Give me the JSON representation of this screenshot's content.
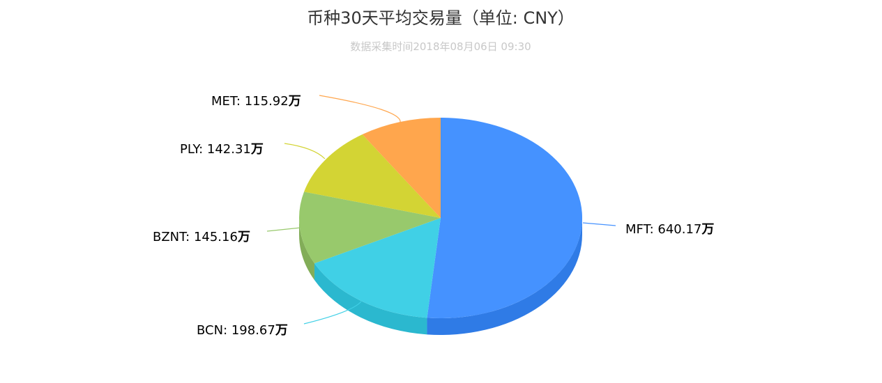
{
  "chart_data": {
    "type": "pie",
    "title": "币种30天平均交易量（单位: CNY）",
    "subtitle": "数据采集时间2018年08月06日 09:30",
    "unit": "万",
    "slices": [
      {
        "name": "MFT",
        "value": 640.17,
        "value_text": "640.17",
        "color": "#4592ff",
        "side_color": "#2f7be6"
      },
      {
        "name": "BCN",
        "value": 198.67,
        "value_text": "198.67",
        "color": "#40d0e6",
        "side_color": "#2bb8cf"
      },
      {
        "name": "BZNT",
        "value": 145.16,
        "value_text": "145.16",
        "color": "#98c96c",
        "side_color": "#82ad58"
      },
      {
        "name": "PLY",
        "value": 142.31,
        "value_text": "142.31",
        "color": "#d3d434",
        "side_color": "#b5b627"
      },
      {
        "name": "MET",
        "value": 115.92,
        "value_text": "115.92",
        "color": "#ffa64d",
        "side_color": "#e08e38"
      }
    ]
  }
}
